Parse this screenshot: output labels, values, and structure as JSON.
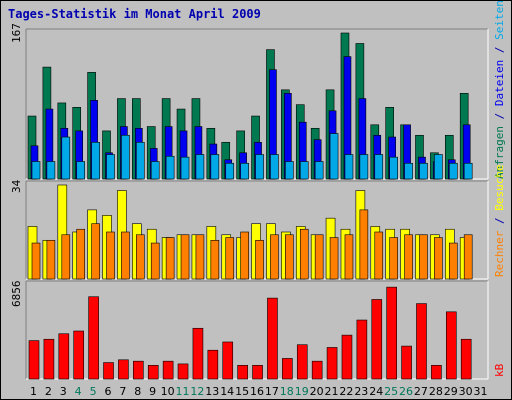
{
  "title": "Tages-Statistik im Monat April 2009",
  "colors": {
    "frame_bg": "#c0c0c0",
    "title": "#0000b0",
    "hits": "#007850",
    "files": "#0000f0",
    "pages": "#00a8e8",
    "visits": "#ffff00",
    "sites": "#ff8000",
    "kbytes": "#ff0000",
    "weekend_day": "#00785a",
    "weekday": "#000000"
  },
  "chart_data": [
    {
      "type": "bar",
      "panel": "top",
      "ymax_label": "167",
      "ylim": [
        0,
        167
      ],
      "categories": [
        "1",
        "2",
        "3",
        "4",
        "5",
        "6",
        "7",
        "8",
        "9",
        "10",
        "11",
        "12",
        "13",
        "14",
        "15",
        "16",
        "17",
        "18",
        "19",
        "20",
        "21",
        "22",
        "23",
        "24",
        "25",
        "26",
        "27",
        "28",
        "29",
        "30",
        "31"
      ],
      "weekend_days": [
        "4",
        "5",
        "11",
        "12",
        "18",
        "19",
        "25",
        "26"
      ],
      "right_label_parts": [
        {
          "text": "Anfragen",
          "color_key": "hits"
        },
        {
          "text": " / ",
          "color_key": "title"
        },
        {
          "text": "Dateien",
          "color_key": "files"
        },
        {
          "text": " / ",
          "color_key": "title"
        },
        {
          "text": "Seiten",
          "color_key": "pages"
        }
      ],
      "series": [
        {
          "name": "Anfragen",
          "color_key": "hits",
          "values": [
            72,
            128,
            87,
            82,
            122,
            55,
            92,
            92,
            60,
            92,
            80,
            92,
            58,
            42,
            55,
            72,
            148,
            102,
            85,
            58,
            102,
            167,
            155,
            62,
            82,
            62,
            50,
            30,
            50,
            98,
            0
          ]
        },
        {
          "name": "Dateien",
          "color_key": "files",
          "values": [
            38,
            80,
            58,
            55,
            90,
            30,
            60,
            58,
            35,
            60,
            55,
            60,
            40,
            22,
            30,
            42,
            125,
            98,
            65,
            45,
            78,
            140,
            92,
            50,
            48,
            62,
            25,
            20,
            22,
            62,
            0
          ]
        },
        {
          "name": "Seiten",
          "color_key": "pages",
          "values": [
            20,
            20,
            48,
            20,
            42,
            28,
            50,
            42,
            20,
            26,
            25,
            28,
            28,
            18,
            18,
            28,
            28,
            20,
            20,
            20,
            52,
            28,
            28,
            28,
            25,
            18,
            18,
            28,
            18,
            18,
            0
          ]
        }
      ]
    },
    {
      "type": "bar",
      "panel": "middle",
      "ymax_label": "34",
      "ylim": [
        0,
        34
      ],
      "right_label_parts": [
        {
          "text": "Rechner",
          "color_key": "sites"
        },
        {
          "text": " / ",
          "color_key": "title"
        },
        {
          "text": "Besuche",
          "color_key": "visits"
        }
      ],
      "series": [
        {
          "name": "Besuche",
          "color_key": "visits",
          "values": [
            19,
            14,
            34,
            17,
            25,
            23,
            32,
            20,
            18,
            15,
            16,
            16,
            19,
            16,
            15,
            20,
            20,
            17,
            19,
            16,
            22,
            18,
            32,
            19,
            18,
            18,
            16,
            16,
            18,
            15,
            0
          ]
        },
        {
          "name": "Rechner",
          "color_key": "sites",
          "values": [
            13,
            14,
            16,
            18,
            20,
            17,
            17,
            16,
            13,
            15,
            16,
            16,
            14,
            15,
            17,
            14,
            16,
            16,
            18,
            16,
            15,
            16,
            25,
            17,
            15,
            16,
            16,
            15,
            13,
            16,
            0
          ]
        }
      ]
    },
    {
      "type": "bar",
      "panel": "bottom",
      "ymax_label": "6856",
      "ylim": [
        0,
        6856
      ],
      "right_label_parts": [
        {
          "text": "kB",
          "color_key": "kbytes"
        }
      ],
      "series": [
        {
          "name": "kB",
          "color_key": "kbytes",
          "values": [
            2800,
            2900,
            3300,
            3500,
            6000,
            1200,
            1400,
            1300,
            1000,
            1300,
            1100,
            3700,
            2100,
            2700,
            1000,
            1000,
            5900,
            1500,
            2500,
            1300,
            2300,
            3200,
            4300,
            5800,
            6700,
            2400,
            5500,
            1000,
            4900,
            2900,
            0
          ]
        }
      ]
    }
  ]
}
